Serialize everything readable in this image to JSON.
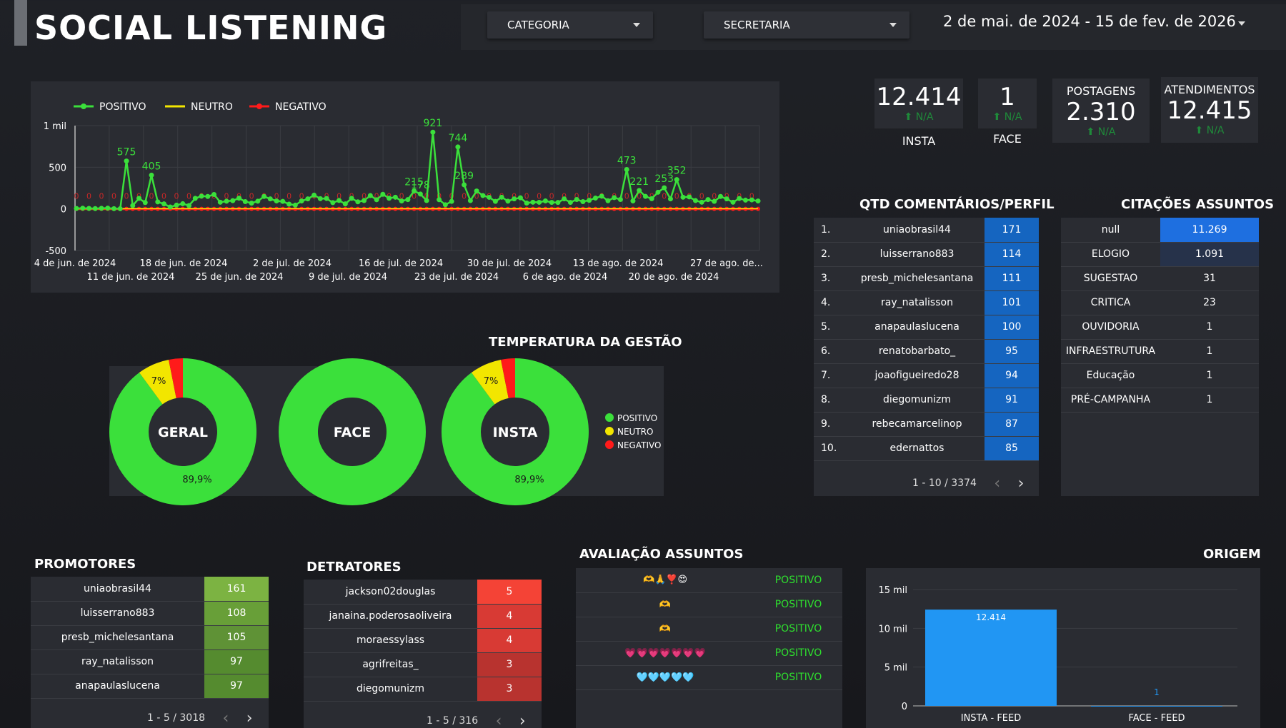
{
  "header": {
    "title": "SOCIAL LISTENING",
    "filters": [
      {
        "label": "CATEGORIA"
      },
      {
        "label": "SECRETARIA"
      }
    ],
    "date_range": "2 de mai. de 2024 - 15 de fev. de 2026"
  },
  "colors": {
    "positivo": "#3be03b",
    "neutro": "#f2e600",
    "negativo": "#ff1a1a",
    "bar_blue": "#2196f3",
    "accent_blue": "#1565c0"
  },
  "kpis": [
    {
      "value": "12.414",
      "change": "N/A",
      "label": "INSTA"
    },
    {
      "value": "1",
      "change": "N/A",
      "label": "FACE"
    },
    {
      "value": "2.310",
      "change": "N/A",
      "label": "POSTAGENS"
    },
    {
      "value": "12.415",
      "change": "N/A",
      "label": "ATENDIMENTOS"
    }
  ],
  "chart_data": [
    {
      "type": "line",
      "title": "",
      "legend": "top-left",
      "series": [
        {
          "name": "POSITIVO",
          "color": "#3be03b"
        },
        {
          "name": "NEUTRO",
          "color": "#f2e600"
        },
        {
          "name": "NEGATIVO",
          "color": "#ff1a1a"
        }
      ],
      "y_ticks": [
        "1 mil",
        "500",
        "0",
        "-500"
      ],
      "ylim": [
        -500,
        1000
      ],
      "x_ticks_top": [
        "4 de jun. de 2024",
        "18 de jun. de 2024",
        "2 de jul. de 2024",
        "16 de jul. de 2024",
        "30 de jul. de 2024",
        "13 de ago. de 2024",
        "27 de ago. de..."
      ],
      "x_ticks_bottom": [
        "11 de jun. de 2024",
        "25 de jun. de 2024",
        "9 de jul. de 2024",
        "23 de jul. de 2024",
        "6 de ago. de 2024",
        "20 de ago. de 2024"
      ],
      "positivo_values": [
        5,
        8,
        6,
        4,
        7,
        9,
        3,
        2,
        575,
        40,
        127,
        76,
        405,
        84,
        60,
        23,
        45,
        62,
        40,
        127,
        153,
        149,
        173,
        80,
        92,
        99,
        129,
        87,
        69,
        92,
        149,
        120,
        95,
        90,
        57,
        45,
        95,
        120,
        165,
        123,
        125,
        75,
        101,
        60,
        127,
        85,
        100,
        160,
        110,
        175,
        128,
        140,
        95,
        112,
        215,
        178,
        100,
        921,
        110,
        50,
        90,
        744,
        289,
        100,
        215,
        160,
        139,
        90,
        140,
        93,
        120,
        133,
        70,
        80,
        79,
        96,
        78,
        77,
        120,
        78,
        113,
        87,
        103,
        130,
        153,
        98,
        135,
        113,
        473,
        95,
        221,
        150,
        122,
        200,
        253,
        120,
        352,
        140,
        144,
        100,
        80,
        112,
        90,
        149,
        120,
        80,
        125,
        105,
        108,
        95
      ],
      "positivo_labels": [
        {
          "i": 8,
          "text": "575"
        },
        {
          "i": 12,
          "text": "405"
        },
        {
          "i": 57,
          "text": "921"
        },
        {
          "i": 61,
          "text": "744"
        },
        {
          "i": 62,
          "text": "289"
        },
        {
          "i": 88,
          "text": "473"
        },
        {
          "i": 96,
          "text": "352"
        },
        {
          "i": 90,
          "text": "221"
        },
        {
          "i": 94,
          "text": "253"
        },
        {
          "i": 54,
          "text": "215"
        },
        {
          "i": 55,
          "text": "178"
        }
      ],
      "neutro_values_note_only": "near zero",
      "negativo_values": [
        0,
        0,
        0,
        0,
        0,
        0,
        0,
        0,
        0,
        0,
        0,
        0,
        0,
        0,
        0,
        0,
        0,
        0,
        0,
        0,
        0,
        0,
        0,
        0,
        0,
        0,
        0,
        0,
        0,
        0,
        0,
        0,
        0,
        0,
        0,
        0,
        0,
        0,
        0,
        0,
        0,
        0,
        0,
        0,
        0,
        0,
        0,
        0,
        0,
        0,
        0,
        0,
        0,
        0,
        0,
        0,
        0,
        0,
        0,
        0,
        0,
        0,
        0,
        0,
        0,
        0,
        0,
        0,
        0,
        0,
        0,
        0,
        0,
        0,
        0,
        0,
        0,
        0,
        0,
        0,
        0,
        0,
        0,
        0,
        0,
        0,
        0,
        0,
        0,
        0,
        0,
        0,
        0,
        0,
        0,
        0,
        0,
        0,
        0,
        0,
        0,
        0,
        0,
        0,
        0,
        0,
        0,
        0,
        0,
        0
      ]
    },
    {
      "type": "pie",
      "title": "TEMPERATURA DA GESTÃO",
      "legend": "right",
      "legend_items": [
        "POSITIVO",
        "NEUTRO",
        "NEGATIVO"
      ],
      "charts": [
        {
          "center_label": "GERAL",
          "slices": [
            89.9,
            7,
            3.1
          ],
          "labels": [
            "89,9%",
            "7%",
            ""
          ]
        },
        {
          "center_label": "FACE",
          "slices": [
            100,
            0,
            0
          ],
          "labels": [
            "",
            "",
            ""
          ]
        },
        {
          "center_label": "INSTA",
          "slices": [
            89.9,
            7,
            3.1
          ],
          "labels": [
            "89,9%",
            "7%",
            ""
          ]
        }
      ]
    },
    {
      "type": "bar",
      "title": "ORIGEM",
      "categories": [
        "INSTA - FEED",
        "FACE - FEED"
      ],
      "values": [
        12414,
        1
      ],
      "value_labels": [
        "12.414",
        "1"
      ],
      "y_ticks": [
        "15 mil",
        "10 mil",
        "5 mil",
        "0"
      ],
      "ylim": [
        0,
        15000
      ]
    }
  ],
  "comentarios_perfil": {
    "title": "QTD COMENTÁRIOS/PERFIL",
    "rows": [
      {
        "rank": "1.",
        "name": "uniaobrasil44",
        "count": "171"
      },
      {
        "rank": "2.",
        "name": "luisserrano883",
        "count": "114"
      },
      {
        "rank": "3.",
        "name": "presb_michelesantana",
        "count": "111"
      },
      {
        "rank": "4.",
        "name": "ray_natalisson",
        "count": "101"
      },
      {
        "rank": "5.",
        "name": "anapaulaslucena",
        "count": "100"
      },
      {
        "rank": "6.",
        "name": "renatobarbato_",
        "count": "95"
      },
      {
        "rank": "7.",
        "name": "joaofigueiredo28",
        "count": "94"
      },
      {
        "rank": "8.",
        "name": "diegomunizm",
        "count": "91"
      },
      {
        "rank": "9.",
        "name": "rebecamarcelinop",
        "count": "87"
      },
      {
        "rank": "10.",
        "name": "edernattos",
        "count": "85"
      }
    ],
    "pager": "1 - 10 / 3374"
  },
  "citacoes": {
    "title": "CITAÇÕES ASSUNTOS",
    "rows": [
      {
        "name": "null",
        "count": "11.269"
      },
      {
        "name": "ELOGIO",
        "count": "1.091"
      },
      {
        "name": "SUGESTAO",
        "count": "31"
      },
      {
        "name": "CRITICA",
        "count": "23"
      },
      {
        "name": "OUVIDORIA",
        "count": "1"
      },
      {
        "name": "INFRAESTRUTURA",
        "count": "1"
      },
      {
        "name": "Educação",
        "count": "1"
      },
      {
        "name": "PRÉ-CAMPANHA",
        "count": "1"
      }
    ]
  },
  "promotores": {
    "title": "PROMOTORES",
    "rows": [
      {
        "name": "uniaobrasil44",
        "count": "161"
      },
      {
        "name": "luisserrano883",
        "count": "108"
      },
      {
        "name": "presb_michelesantana",
        "count": "105"
      },
      {
        "name": "ray_natalisson",
        "count": "97"
      },
      {
        "name": "anapaulaslucena",
        "count": "97"
      }
    ],
    "pager": "1 - 5 / 3018"
  },
  "detratores": {
    "title": "DETRATORES",
    "rows": [
      {
        "name": "jackson02douglas",
        "count": "5"
      },
      {
        "name": "janaina.poderosaoliveira",
        "count": "4"
      },
      {
        "name": "moraessylass",
        "count": "4"
      },
      {
        "name": "agrifreitas_",
        "count": "3"
      },
      {
        "name": "diegomunizm",
        "count": "3"
      }
    ],
    "pager": "1 - 5 / 316"
  },
  "avaliacao": {
    "title": "AVALIAÇÃO ASSUNTOS",
    "rows": [
      {
        "text": "🫶🙏❣️😍",
        "label": "POSITIVO"
      },
      {
        "text": "🫶",
        "label": "POSITIVO"
      },
      {
        "text": "🫶",
        "label": "POSITIVO"
      },
      {
        "text": "💗💗💗💗💗💗💗",
        "label": "POSITIVO"
      },
      {
        "text": "🩵🩵🩵🩵🩵",
        "label": "POSITIVO"
      }
    ]
  }
}
